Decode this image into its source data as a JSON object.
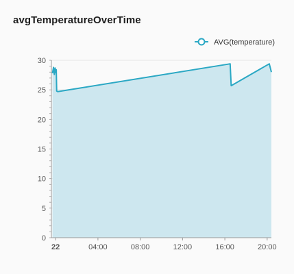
{
  "panel": {
    "title": "avgTemperatureOverTime"
  },
  "colors": {
    "line": "#2ba8c4",
    "area": "#cde7ef",
    "grid": "#e6e6e6",
    "axis": "#999999",
    "background": "#fafafa"
  },
  "chart_data": {
    "type": "area",
    "title": "avgTemperatureOverTime",
    "xlabel": "",
    "ylabel": "",
    "ylim": [
      0,
      30
    ],
    "yticks": [
      0,
      5,
      10,
      15,
      20,
      25,
      30
    ],
    "xlim_hours": [
      -0.4,
      20.4
    ],
    "xticks": [
      {
        "hour": 0,
        "label": "22",
        "bold": true
      },
      {
        "hour": 4,
        "label": "04:00",
        "bold": false
      },
      {
        "hour": 8,
        "label": "08:00",
        "bold": false
      },
      {
        "hour": 12,
        "label": "12:00",
        "bold": false
      },
      {
        "hour": 16,
        "label": "16:00",
        "bold": false
      },
      {
        "hour": 20,
        "label": "20:00",
        "bold": false
      }
    ],
    "grid": true,
    "legend_position": "top-right",
    "series": [
      {
        "name": "AVG(temperature)",
        "points": [
          {
            "hour": -0.3,
            "value": 27.8
          },
          {
            "hour": -0.2,
            "value": 28.8
          },
          {
            "hour": -0.12,
            "value": 27.6
          },
          {
            "hour": -0.05,
            "value": 28.7
          },
          {
            "hour": 0.02,
            "value": 27.9
          },
          {
            "hour": 0.06,
            "value": 28.4
          },
          {
            "hour": 0.1,
            "value": 24.8
          },
          {
            "hour": 0.2,
            "value": 24.7
          },
          {
            "hour": 16.5,
            "value": 29.4
          },
          {
            "hour": 16.6,
            "value": 25.7
          },
          {
            "hour": 20.2,
            "value": 29.4
          },
          {
            "hour": 20.4,
            "value": 28.0
          }
        ]
      }
    ]
  }
}
